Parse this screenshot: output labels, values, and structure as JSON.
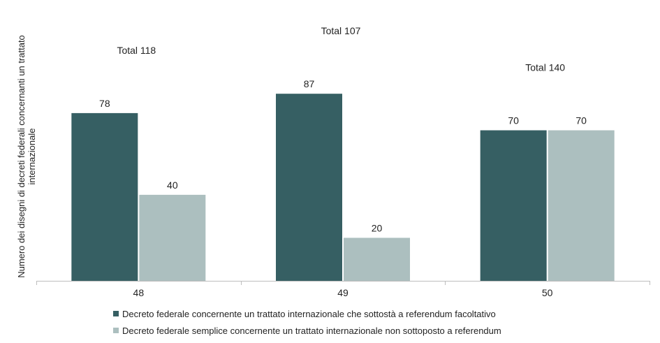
{
  "chart_data": {
    "type": "bar",
    "categories": [
      "48",
      "49",
      "50"
    ],
    "series": [
      {
        "name": "Decreto federale concernente un trattato internazionale che sottostà a referendum facoltativo",
        "values": [
          78,
          87,
          70
        ],
        "color": "#365f63"
      },
      {
        "name": "Decreto federale semplice concernente un trattato internazionale non sottoposto a referendum",
        "values": [
          40,
          20,
          70
        ],
        "color": "#acbfbf"
      }
    ],
    "totals": [
      "Total 118",
      "Total 107",
      "Total 140"
    ],
    "xlabel": "",
    "ylabel": "Numero dei disegni di decreti federali concernanti un trattato internazionale",
    "ylim": [
      0,
      115
    ],
    "grid": false,
    "legend_position": "bottom"
  }
}
